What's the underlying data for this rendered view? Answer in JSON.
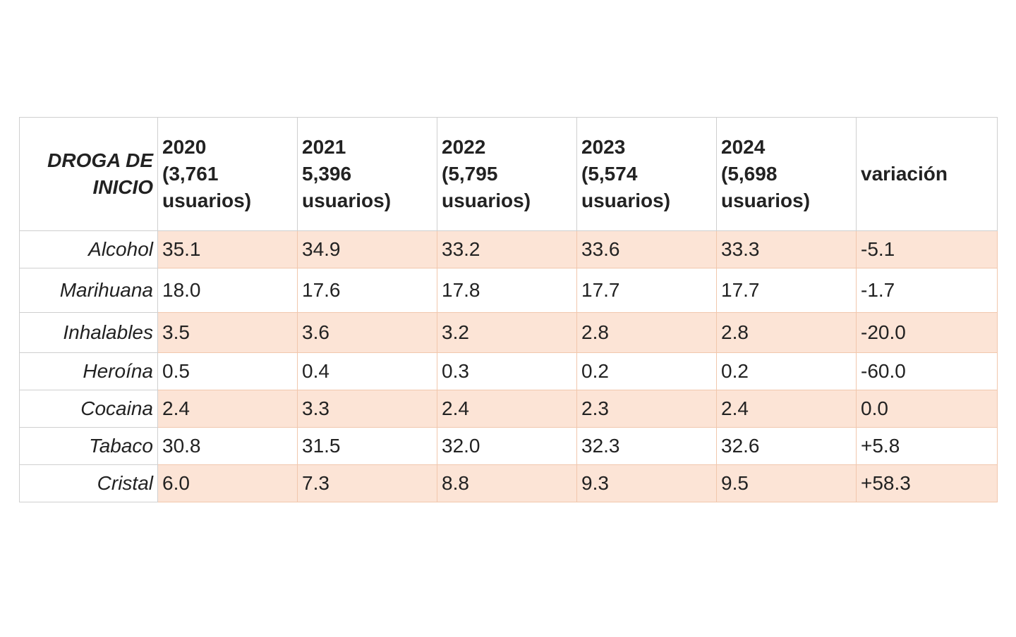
{
  "table": {
    "header": {
      "first": "DROGA DE INICIO",
      "columns": [
        {
          "year": "2020",
          "users": "(3,761 usuarios)"
        },
        {
          "year": "2021",
          "users": "5,396 usuarios)"
        },
        {
          "year": "2022",
          "users": "(5,795 usuarios)"
        },
        {
          "year": "2023",
          "users": "(5,574 usuarios)"
        },
        {
          "year": "2024",
          "users": "(5,698 usuarios)"
        }
      ],
      "last": "variación"
    },
    "rows": [
      {
        "drug": "Alcohol",
        "values": [
          "35.1",
          "34.9",
          "33.2",
          "33.6",
          "33.3"
        ],
        "change": "-5.1"
      },
      {
        "drug": "Marihuana",
        "values": [
          "18.0",
          "17.6",
          "17.8",
          "17.7",
          "17.7"
        ],
        "change": "-1.7"
      },
      {
        "drug": "Inhalables",
        "values": [
          "3.5",
          "3.6",
          "3.2",
          "2.8",
          "2.8"
        ],
        "change": "-20.0"
      },
      {
        "drug": "Heroína",
        "values": [
          "0.5",
          "0.4",
          "0.3",
          "0.2",
          "0.2"
        ],
        "change": "-60.0"
      },
      {
        "drug": "Cocaina",
        "values": [
          "2.4",
          "3.3",
          "2.4",
          "2.3",
          "2.4"
        ],
        "change": "0.0"
      },
      {
        "drug": "Tabaco",
        "values": [
          "30.8",
          "31.5",
          "32.0",
          "32.3",
          "32.6"
        ],
        "change": "+5.8"
      },
      {
        "drug": "Cristal",
        "values": [
          "6.0",
          "7.3",
          "8.8",
          "9.3",
          "9.5"
        ],
        "change": "+58.3"
      }
    ]
  },
  "colors": {
    "row_shade": "#fce4d6",
    "row_border": "#f1c7ad",
    "grid_border": "#cfcfcf",
    "text": "#222222"
  }
}
